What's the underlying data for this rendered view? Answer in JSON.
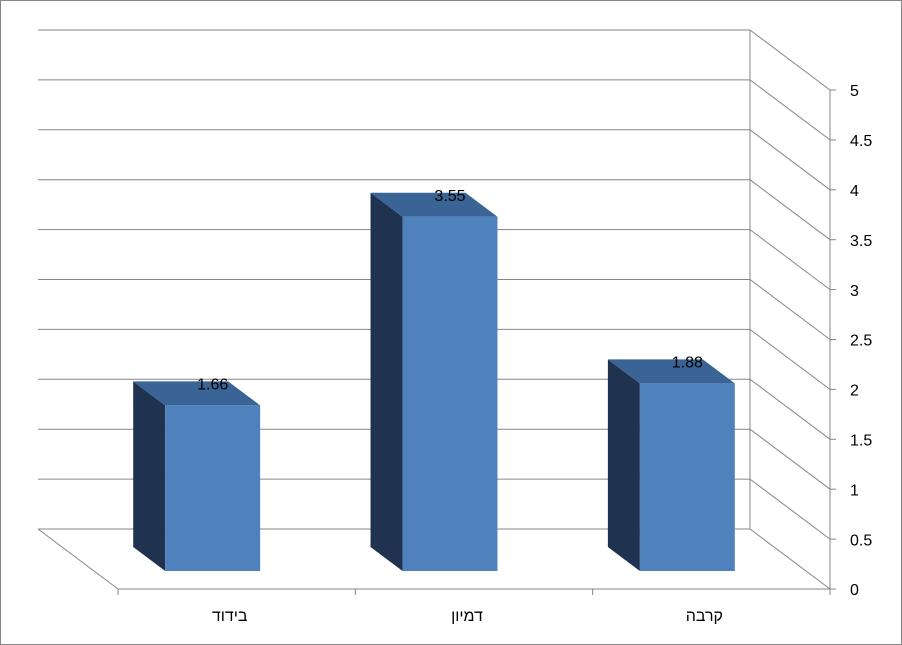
{
  "chart_data": {
    "type": "bar3d",
    "categories": [
      "בידוד",
      "דמיון",
      "קרבה"
    ],
    "values": [
      1.66,
      3.55,
      1.88
    ],
    "color": "#4f81bd",
    "ylim": [
      0,
      5
    ],
    "yticks": [
      0,
      0.5,
      1,
      1.5,
      2,
      2.5,
      3,
      3.5,
      4,
      4.5,
      5
    ],
    "grid": true
  }
}
